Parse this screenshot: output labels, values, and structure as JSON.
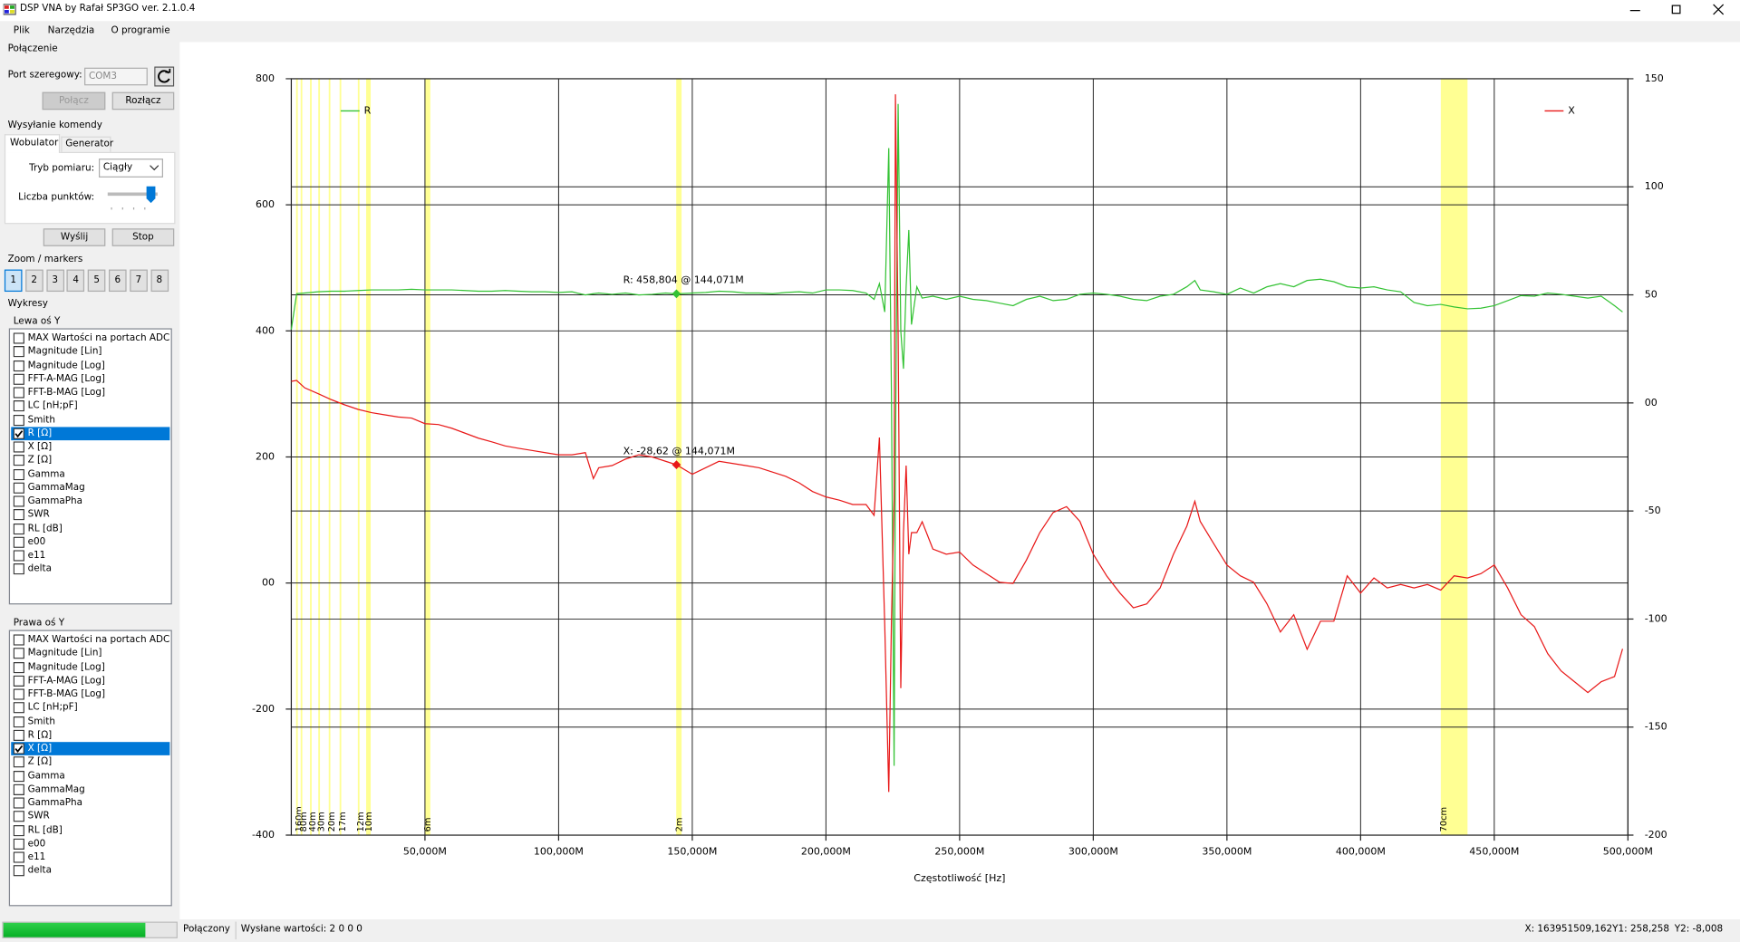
{
  "window": {
    "title": "DSP VNA by Rafał SP3GO ver. 2.1.0.4"
  },
  "menu": [
    "Plik",
    "Narzędzia",
    "O programie"
  ],
  "connection": {
    "title": "Połączenie",
    "port_label": "Port szeregowy:",
    "port": "COM3",
    "connect": "Połącz",
    "disconnect": "Rozłącz"
  },
  "command": {
    "title": "Wysyłanie komendy",
    "tabs": [
      "Wobulator",
      "Generator"
    ],
    "mode_label": "Tryb pomiaru:",
    "mode": "Ciągły",
    "points_label": "Liczba punktów:",
    "send": "Wyślij",
    "stop": "Stop"
  },
  "zoom": {
    "title": "Zoom / markers",
    "buttons": [
      "1",
      "2",
      "3",
      "4",
      "5",
      "6",
      "7",
      "8"
    ]
  },
  "plots": {
    "title": "Wykresy",
    "left": {
      "title": "Lewa oś Y",
      "items": [
        {
          "label": "MAX Wartości na portach ADC",
          "checked": false
        },
        {
          "label": "Magnitude [Lin]",
          "checked": false
        },
        {
          "label": "Magnitude [Log]",
          "checked": false
        },
        {
          "label": "FFT-A-MAG [Log]",
          "checked": false
        },
        {
          "label": "FFT-B-MAG [Log]",
          "checked": false
        },
        {
          "label": "LC [nH;pF]",
          "checked": false
        },
        {
          "label": "Smith",
          "checked": false
        },
        {
          "label": "R [Ω]",
          "checked": true
        },
        {
          "label": "X [Ω]",
          "checked": false
        },
        {
          "label": "Z [Ω]",
          "checked": false
        },
        {
          "label": "Gamma",
          "checked": false
        },
        {
          "label": "GammaMag",
          "checked": false
        },
        {
          "label": "GammaPha",
          "checked": false
        },
        {
          "label": "SWR",
          "checked": false
        },
        {
          "label": "RL [dB]",
          "checked": false
        },
        {
          "label": "e00",
          "checked": false
        },
        {
          "label": "e11",
          "checked": false
        },
        {
          "label": "delta",
          "checked": false
        }
      ]
    },
    "right": {
      "title": "Prawa oś Y",
      "items": [
        {
          "label": "MAX Wartości na portach ADC",
          "checked": false
        },
        {
          "label": "Magnitude [Lin]",
          "checked": false
        },
        {
          "label": "Magnitude [Log]",
          "checked": false
        },
        {
          "label": "FFT-A-MAG [Log]",
          "checked": false
        },
        {
          "label": "FFT-B-MAG [Log]",
          "checked": false
        },
        {
          "label": "LC [nH;pF]",
          "checked": false
        },
        {
          "label": "Smith",
          "checked": false
        },
        {
          "label": "R [Ω]",
          "checked": false
        },
        {
          "label": "X [Ω]",
          "checked": true
        },
        {
          "label": "Z [Ω]",
          "checked": false
        },
        {
          "label": "Gamma",
          "checked": false
        },
        {
          "label": "GammaMag",
          "checked": false
        },
        {
          "label": "GammaPha",
          "checked": false
        },
        {
          "label": "SWR",
          "checked": false
        },
        {
          "label": "RL [dB]",
          "checked": false
        },
        {
          "label": "e00",
          "checked": false
        },
        {
          "label": "e11",
          "checked": false
        },
        {
          "label": "delta",
          "checked": false
        }
      ]
    }
  },
  "chart_data": {
    "type": "line",
    "xlabel": "Częstotliwość [Hz]",
    "x": [
      0,
      2,
      5,
      10,
      15,
      20,
      25,
      30,
      35,
      40,
      45,
      50,
      55,
      60,
      65,
      70,
      75,
      80,
      85,
      90,
      95,
      100,
      105,
      110,
      113,
      115,
      120,
      125,
      130,
      135,
      140,
      144.071,
      150,
      155,
      160,
      165,
      170,
      175,
      180,
      185,
      190,
      195,
      200,
      205,
      210,
      215,
      218,
      220,
      222,
      223.5,
      224.5,
      225.5,
      226,
      227,
      228,
      229,
      230,
      231,
      232,
      234,
      236,
      240,
      245,
      250,
      255,
      260,
      265,
      270,
      275,
      280,
      285,
      290,
      295,
      300,
      305,
      310,
      315,
      320,
      325,
      330,
      335,
      338,
      340,
      345,
      350,
      355,
      360,
      365,
      370,
      375,
      380,
      385,
      390,
      395,
      400,
      405,
      410,
      415,
      420,
      425,
      430,
      435,
      440,
      445,
      450,
      455,
      460,
      465,
      470,
      475,
      480,
      485,
      490,
      495,
      498
    ],
    "xlim": [
      0,
      500
    ],
    "xticks": [
      {
        "value": 50,
        "label": "50,000M"
      },
      {
        "value": 100,
        "label": "100,000M"
      },
      {
        "value": 150,
        "label": "150,000M"
      },
      {
        "value": 200,
        "label": "200,000M"
      },
      {
        "value": 250,
        "label": "250,000M"
      },
      {
        "value": 300,
        "label": "300,000M"
      },
      {
        "value": 350,
        "label": "350,000M"
      },
      {
        "value": 400,
        "label": "400,000M"
      },
      {
        "value": 450,
        "label": "450,000M"
      },
      {
        "value": 500,
        "label": "500,000M"
      }
    ],
    "ylim": [
      -400,
      800
    ],
    "yticks": [
      -400,
      -200,
      {
        "value": 0,
        "label": "00"
      },
      200,
      400,
      600,
      800
    ],
    "y2lim": [
      -200,
      150
    ],
    "y2ticks": [
      -200,
      -150,
      -100,
      -50,
      {
        "value": 0,
        "label": "00"
      },
      50,
      100,
      150
    ],
    "grid": true,
    "series": [
      {
        "name": "R",
        "color": "#33c233",
        "legend": "upper left",
        "values": [
          402,
          459,
          460,
          462,
          463,
          463,
          464,
          465,
          465,
          465,
          466,
          465,
          465,
          465,
          464,
          463,
          463,
          464,
          463,
          462,
          462,
          461,
          462,
          457,
          459,
          460,
          458,
          460,
          457,
          458,
          460,
          458.804,
          460,
          461,
          463,
          462,
          460,
          460,
          459,
          461,
          462,
          460,
          465,
          465,
          464,
          460,
          450,
          475,
          430,
          690,
          300,
          -290,
          200,
          760,
          400,
          340,
          470,
          560,
          410,
          470,
          452,
          455,
          450,
          455,
          450,
          448,
          444,
          440,
          450,
          455,
          448,
          450,
          458,
          460,
          458,
          455,
          450,
          448,
          455,
          458,
          470,
          480,
          465,
          462,
          458,
          468,
          460,
          470,
          475,
          470,
          480,
          482,
          478,
          470,
          468,
          470,
          465,
          462,
          445,
          440,
          442,
          438,
          435,
          436,
          440,
          448,
          456,
          455,
          460,
          458,
          455,
          452,
          455,
          440,
          430
        ]
      },
      {
        "name": "X",
        "color": "#e81818",
        "axis": "y2",
        "legend": "upper right",
        "values": [
          10,
          10.4,
          7,
          4.3,
          1.5,
          -0.9,
          -3,
          -4.5,
          -5.5,
          -6.5,
          -7,
          -9.6,
          -10,
          -11.7,
          -14,
          -16.3,
          -18,
          -19.9,
          -21,
          -22,
          -23,
          -24,
          -24,
          -23,
          -35,
          -30,
          -29,
          -26,
          -24,
          -25,
          -27,
          -28.62,
          -33,
          -30,
          -27,
          -28,
          -29,
          -30,
          -32,
          -34,
          -37,
          -41,
          -43.5,
          -45,
          -47,
          -47,
          -52,
          -16,
          -103,
          -180,
          -101,
          -44.5,
          142.8,
          32,
          -132,
          -60,
          -29,
          -70,
          -60,
          -60,
          -55,
          -67.6,
          -70,
          -69,
          -75,
          -79,
          -83,
          -83.5,
          -72.7,
          -60,
          -50.7,
          -48,
          -54.8,
          -70,
          -80,
          -88,
          -94.8,
          -93,
          -85.6,
          -70,
          -57,
          -45.5,
          -54.8,
          -65,
          -75,
          -80,
          -83,
          -93,
          -106,
          -98,
          -114,
          -101,
          -101,
          -80,
          -88,
          -81,
          -85.6,
          -84,
          -85.6,
          -84,
          -86.6,
          -80,
          -81,
          -79,
          -75,
          -85.6,
          -98,
          -103.5,
          -116,
          -124,
          -129,
          -134,
          -129,
          -126.6,
          -113.8
        ]
      }
    ],
    "band_color": "#ffff80",
    "bands": [
      {
        "label": "160m",
        "range": [
          1.8,
          2.0
        ]
      },
      {
        "label": "80m",
        "range": [
          3.5,
          3.8
        ]
      },
      {
        "label": "40m",
        "range": [
          7.0,
          7.2
        ]
      },
      {
        "label": "30m",
        "range": [
          10.1,
          10.15
        ]
      },
      {
        "label": "20m",
        "range": [
          14.0,
          14.35
        ]
      },
      {
        "label": "17m",
        "range": [
          18.068,
          18.168
        ]
      },
      {
        "label": "12m",
        "range": [
          24.89,
          24.99
        ]
      },
      {
        "label": "10m",
        "range": [
          28.0,
          29.7
        ]
      },
      {
        "label": "6m",
        "range": [
          50,
          52
        ]
      },
      {
        "label": "2m",
        "range": [
          144,
          146
        ]
      },
      {
        "label": "70cm",
        "range": [
          430,
          440
        ]
      }
    ],
    "markers": [
      {
        "label": "R: 458,804 @ 144,071M",
        "x": 144.071,
        "value": 458.804,
        "color": "#33c233"
      },
      {
        "label": "X: -28,62 @ 144,071M",
        "x": 144.071,
        "value": -28.62,
        "axis": "y2",
        "color": "#e81818"
      }
    ]
  },
  "status": {
    "progress": 82,
    "state": "Połączony",
    "sent": "Wysłane wartości: 2 0 0 0",
    "cursor_x": "X: 163951509,162",
    "cursor_y1": "Y1: 258,258",
    "cursor_y2": "Y2: -8,008"
  }
}
